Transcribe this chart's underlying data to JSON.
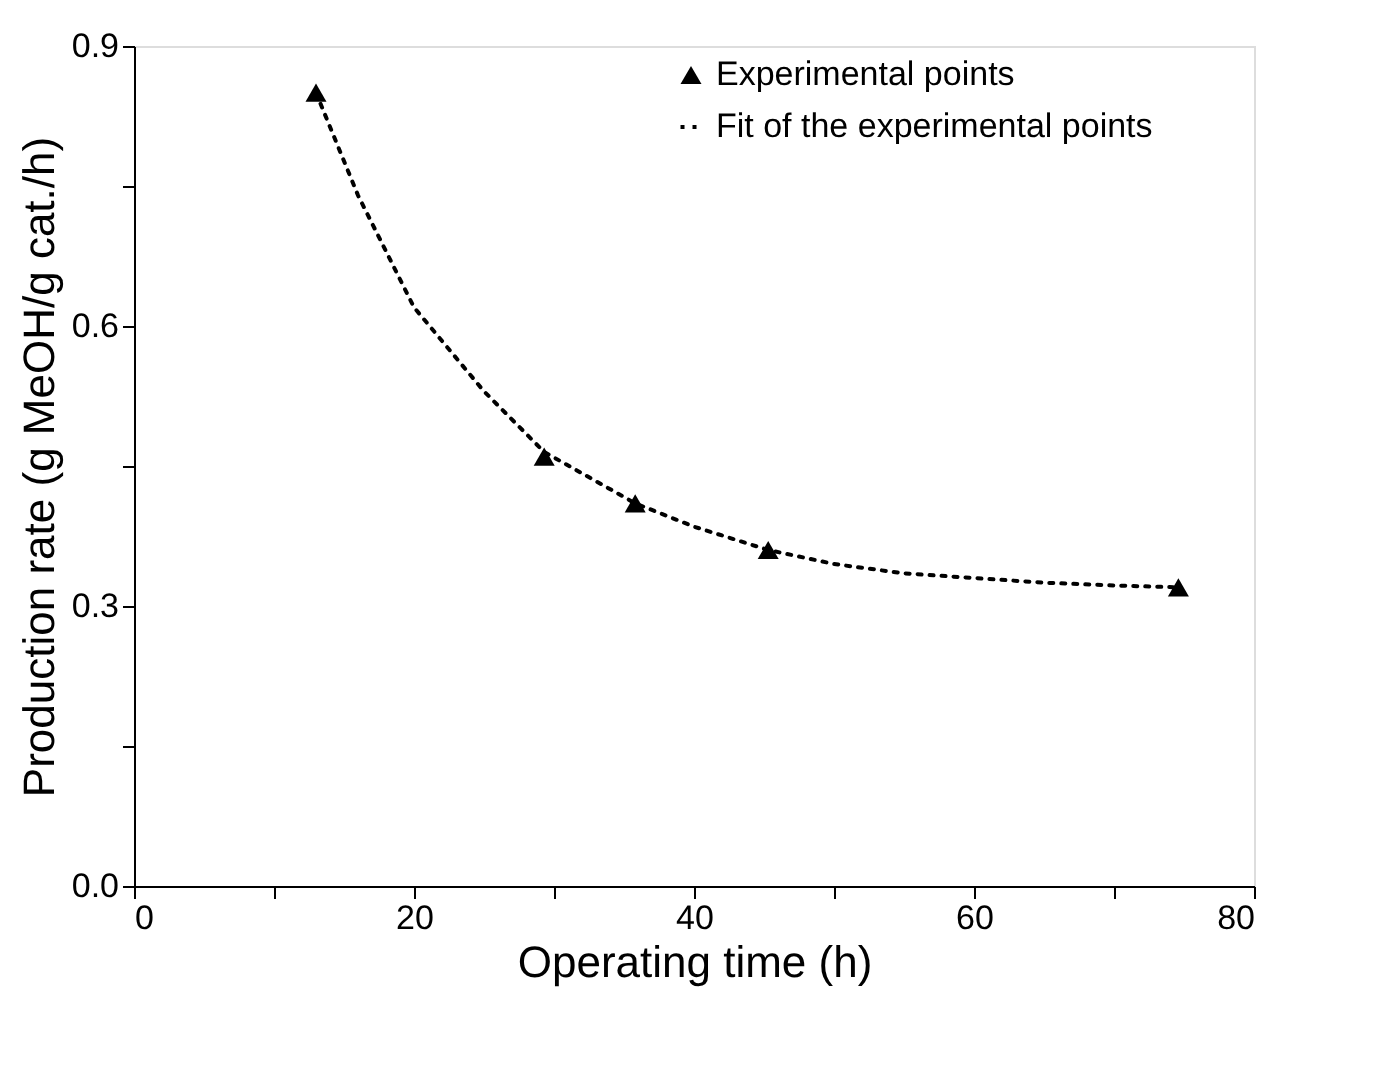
{
  "chart_data": {
    "type": "scatter",
    "xlabel": "Operating time (h)",
    "ylabel": "Production rate (g MeOH/g cat./h)",
    "xlim": [
      0,
      80
    ],
    "xticks": [
      0,
      {
        "value": 10,
        "label": null
      },
      20,
      {
        "value": 30,
        "label": null
      },
      40,
      {
        "value": 50,
        "label": null
      },
      60,
      {
        "value": 70,
        "label": null
      },
      80
    ],
    "ylim": [
      0,
      0.9
    ],
    "yticks": [
      {
        "value": 0,
        "label": "0.0"
      },
      {
        "value": 0.15,
        "label": null
      },
      0.3,
      {
        "value": 0.45,
        "label": null
      },
      0.6,
      {
        "value": 0.75,
        "label": null
      },
      0.9
    ],
    "grid": false,
    "legend": "top right",
    "series": [
      {
        "name": "Experimental points",
        "marker": "triangle",
        "color": "#000000",
        "x": [
          13.0,
          29.3,
          35.8,
          45.3,
          74.6
        ],
        "values": [
          0.85,
          0.46,
          0.41,
          0.36,
          0.32
        ]
      },
      {
        "name": "Fit of the experimental points",
        "type": "line",
        "line_style": "dotted",
        "marker": "none",
        "color": "#000000",
        "x": [
          13.0,
          16,
          20,
          25,
          29.3,
          35.8,
          40,
          45.3,
          50,
          55,
          60,
          65,
          70,
          74.6
        ],
        "values": [
          0.85,
          0.74,
          0.62,
          0.53,
          0.465,
          0.41,
          0.385,
          0.36,
          0.345,
          0.335,
          0.33,
          0.325,
          0.322,
          0.32
        ]
      }
    ]
  }
}
